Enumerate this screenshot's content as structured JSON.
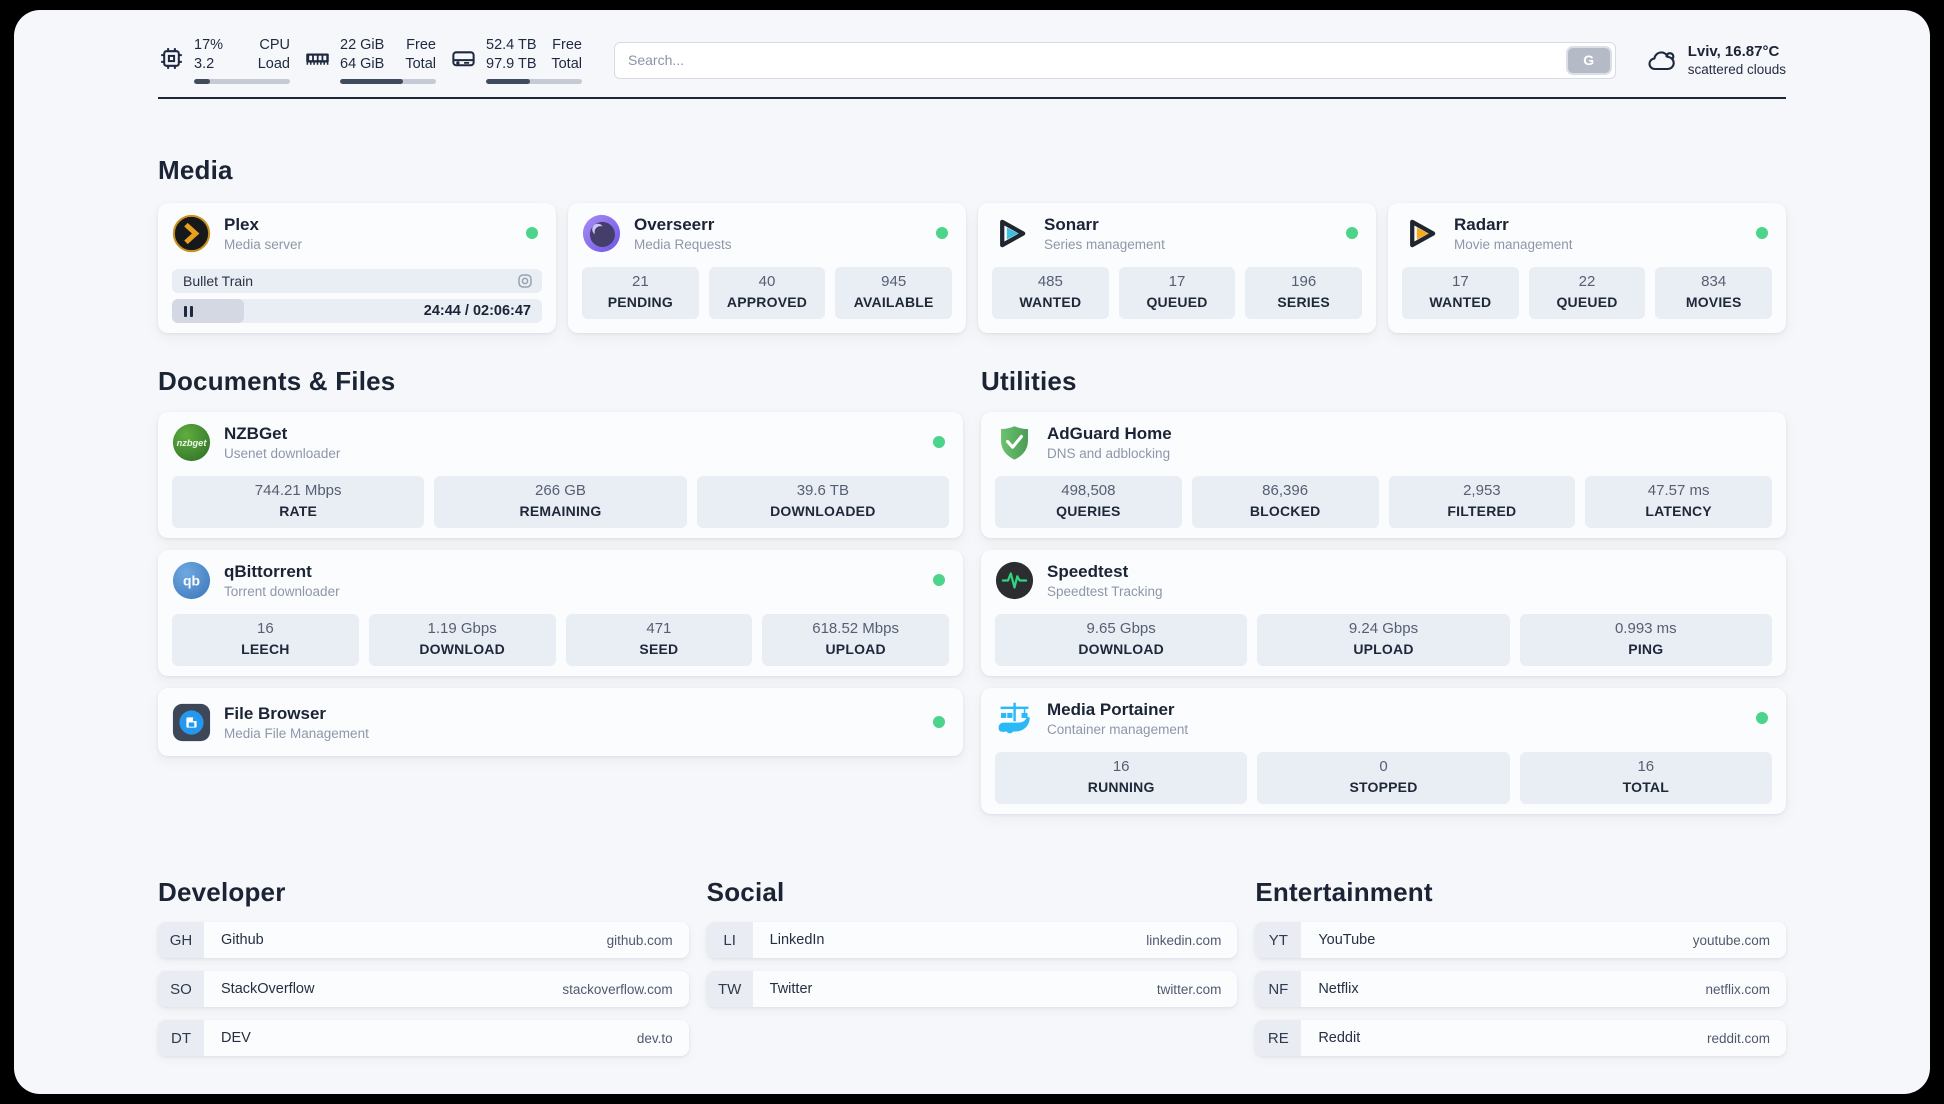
{
  "theme": {
    "status_online": "#4cd48b",
    "accent_dark": "#1e2940",
    "plex_gold": "#e8a01c",
    "sonarr_cyan": "#3fc0de",
    "radarr_amber": "#f7a81b",
    "portainer_blue": "#29b9f6"
  },
  "topbar": {
    "cpu": {
      "value1": "17%",
      "value2": "3.2",
      "label1": "CPU",
      "label2": "Load",
      "bar_percent": 17
    },
    "ram": {
      "value1": "22 GiB",
      "value2": "64 GiB",
      "label1": "Free",
      "label2": "Total",
      "bar_percent": 66
    },
    "disk": {
      "value1": "52.4 TB",
      "value2": "97.9 TB",
      "label1": "Free",
      "label2": "Total",
      "bar_percent": 46
    },
    "search": {
      "placeholder": "Search...",
      "button_label": "G"
    },
    "weather": {
      "location": "Lviv, 16.87°C",
      "condition": "scattered clouds"
    }
  },
  "media": {
    "heading": "Media",
    "plex": {
      "name": "Plex",
      "desc": "Media server",
      "now_playing": "Bullet Train",
      "time": "24:44 / 02:06:47",
      "progress_percent": 19.5
    },
    "overseerr": {
      "name": "Overseerr",
      "desc": "Media Requests",
      "stats": [
        {
          "value": "21",
          "label": "PENDING"
        },
        {
          "value": "40",
          "label": "APPROVED"
        },
        {
          "value": "945",
          "label": "AVAILABLE"
        }
      ]
    },
    "sonarr": {
      "name": "Sonarr",
      "desc": "Series management",
      "stats": [
        {
          "value": "485",
          "label": "WANTED"
        },
        {
          "value": "17",
          "label": "QUEUED"
        },
        {
          "value": "196",
          "label": "SERIES"
        }
      ]
    },
    "radarr": {
      "name": "Radarr",
      "desc": "Movie management",
      "stats": [
        {
          "value": "17",
          "label": "WANTED"
        },
        {
          "value": "22",
          "label": "QUEUED"
        },
        {
          "value": "834",
          "label": "MOVIES"
        }
      ]
    }
  },
  "documents": {
    "heading": "Documents & Files",
    "nzbget": {
      "name": "NZBGet",
      "desc": "Usenet downloader",
      "stats": [
        {
          "value": "744.21 Mbps",
          "label": "RATE"
        },
        {
          "value": "266 GB",
          "label": "REMAINING"
        },
        {
          "value": "39.6 TB",
          "label": "DOWNLOADED"
        }
      ]
    },
    "qbittorrent": {
      "name": "qBittorrent",
      "desc": "Torrent downloader",
      "stats": [
        {
          "value": "16",
          "label": "LEECH"
        },
        {
          "value": "1.19 Gbps",
          "label": "DOWNLOAD"
        },
        {
          "value": "471",
          "label": "SEED"
        },
        {
          "value": "618.52 Mbps",
          "label": "UPLOAD"
        }
      ]
    },
    "filebrowser": {
      "name": "File Browser",
      "desc": "Media File Management"
    }
  },
  "utilities": {
    "heading": "Utilities",
    "adguard": {
      "name": "AdGuard Home",
      "desc": "DNS and adblocking",
      "stats": [
        {
          "value": "498,508",
          "label": "QUERIES"
        },
        {
          "value": "86,396",
          "label": "BLOCKED"
        },
        {
          "value": "2,953",
          "label": "FILTERED"
        },
        {
          "value": "47.57 ms",
          "label": "LATENCY"
        }
      ]
    },
    "speedtest": {
      "name": "Speedtest",
      "desc": "Speedtest Tracking",
      "stats": [
        {
          "value": "9.65 Gbps",
          "label": "DOWNLOAD"
        },
        {
          "value": "9.24 Gbps",
          "label": "UPLOAD"
        },
        {
          "value": "0.993 ms",
          "label": "PING"
        }
      ]
    },
    "portainer": {
      "name": "Media Portainer",
      "desc": "Container management",
      "stats": [
        {
          "value": "16",
          "label": "RUNNING"
        },
        {
          "value": "0",
          "label": "STOPPED"
        },
        {
          "value": "16",
          "label": "TOTAL"
        }
      ]
    }
  },
  "bookmarks": {
    "developer": {
      "heading": "Developer",
      "items": [
        {
          "abbr": "GH",
          "name": "Github",
          "url": "github.com"
        },
        {
          "abbr": "SO",
          "name": "StackOverflow",
          "url": "stackoverflow.com"
        },
        {
          "abbr": "DT",
          "name": "DEV",
          "url": "dev.to"
        }
      ]
    },
    "social": {
      "heading": "Social",
      "items": [
        {
          "abbr": "LI",
          "name": "LinkedIn",
          "url": "linkedin.com"
        },
        {
          "abbr": "TW",
          "name": "Twitter",
          "url": "twitter.com"
        }
      ]
    },
    "entertainment": {
      "heading": "Entertainment",
      "items": [
        {
          "abbr": "YT",
          "name": "YouTube",
          "url": "youtube.com"
        },
        {
          "abbr": "NF",
          "name": "Netflix",
          "url": "netflix.com"
        },
        {
          "abbr": "RE",
          "name": "Reddit",
          "url": "reddit.com"
        }
      ]
    }
  }
}
